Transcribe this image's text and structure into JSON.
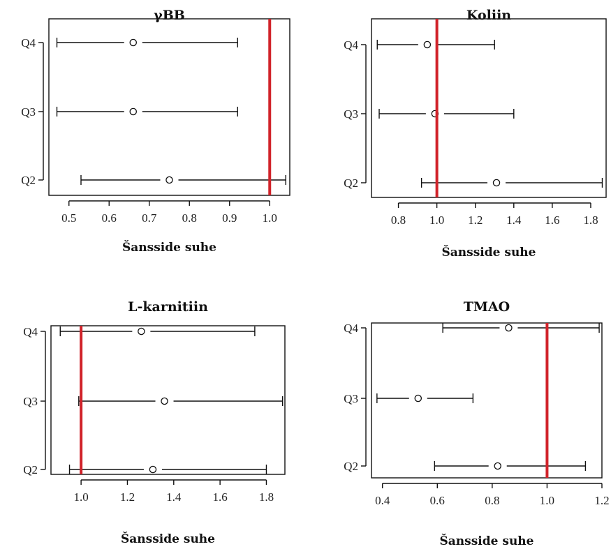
{
  "colors": {
    "reference_line": "#d1232a",
    "ink": "#111111",
    "background": "#ffffff"
  },
  "chart_data": [
    {
      "type": "forest",
      "title": "γBB",
      "xlabel": "Šansside suhe",
      "categories": [
        "Q2",
        "Q3",
        "Q4"
      ],
      "xlim": [
        0.45,
        1.05
      ],
      "xticks": [
        0.5,
        0.6,
        0.7,
        0.8,
        0.9,
        1.0
      ],
      "xtick_labels": [
        "0.5",
        "0.6",
        "0.7",
        "0.8",
        "0.9",
        "1.0"
      ],
      "reference_line": 1.0,
      "estimates": [
        {
          "category": "Q2",
          "value": 0.75,
          "lower": 0.53,
          "upper": 1.04
        },
        {
          "category": "Q3",
          "value": 0.66,
          "lower": 0.47,
          "upper": 0.92
        },
        {
          "category": "Q4",
          "value": 0.66,
          "lower": 0.47,
          "upper": 0.92
        }
      ]
    },
    {
      "type": "forest",
      "title": "Koliin",
      "xlabel": "Šansside suhe",
      "categories": [
        "Q2",
        "Q3",
        "Q4"
      ],
      "xlim": [
        0.66,
        1.88
      ],
      "xticks": [
        0.8,
        1.0,
        1.2,
        1.4,
        1.6,
        1.8
      ],
      "xtick_labels": [
        "0.8",
        "1.0",
        "1.2",
        "1.4",
        "1.6",
        "1.8"
      ],
      "reference_line": 1.0,
      "estimates": [
        {
          "category": "Q2",
          "value": 1.31,
          "lower": 0.92,
          "upper": 1.86
        },
        {
          "category": "Q3",
          "value": 0.99,
          "lower": 0.7,
          "upper": 1.4
        },
        {
          "category": "Q4",
          "value": 0.95,
          "lower": 0.69,
          "upper": 1.3
        }
      ]
    },
    {
      "type": "forest",
      "title": "L-karnitiin",
      "xlabel": "Šansside suhe",
      "categories": [
        "Q2",
        "Q3",
        "Q4"
      ],
      "xlim": [
        0.87,
        1.88
      ],
      "xticks": [
        1.0,
        1.2,
        1.4,
        1.6,
        1.8
      ],
      "xtick_labels": [
        "1.0",
        "1.2",
        "1.4",
        "1.6",
        "1.8"
      ],
      "reference_line": 1.0,
      "estimates": [
        {
          "category": "Q2",
          "value": 1.31,
          "lower": 0.95,
          "upper": 1.8
        },
        {
          "category": "Q3",
          "value": 1.36,
          "lower": 0.99,
          "upper": 1.87
        },
        {
          "category": "Q4",
          "value": 1.26,
          "lower": 0.91,
          "upper": 1.75
        }
      ]
    },
    {
      "type": "forest",
      "title": "TMAO",
      "xlabel": "Šansside suhe",
      "categories": [
        "Q2",
        "Q3",
        "Q4"
      ],
      "xlim": [
        0.36,
        1.2
      ],
      "xticks": [
        0.4,
        0.6,
        0.8,
        1.0,
        1.2
      ],
      "xtick_labels": [
        "0.4",
        "0.6",
        "0.8",
        "1.0",
        "1.2"
      ],
      "reference_line": 1.0,
      "estimates": [
        {
          "category": "Q2",
          "value": 0.82,
          "lower": 0.59,
          "upper": 1.14
        },
        {
          "category": "Q3",
          "value": 0.53,
          "lower": 0.38,
          "upper": 0.73
        },
        {
          "category": "Q4",
          "value": 0.86,
          "lower": 0.62,
          "upper": 1.19
        }
      ]
    }
  ]
}
